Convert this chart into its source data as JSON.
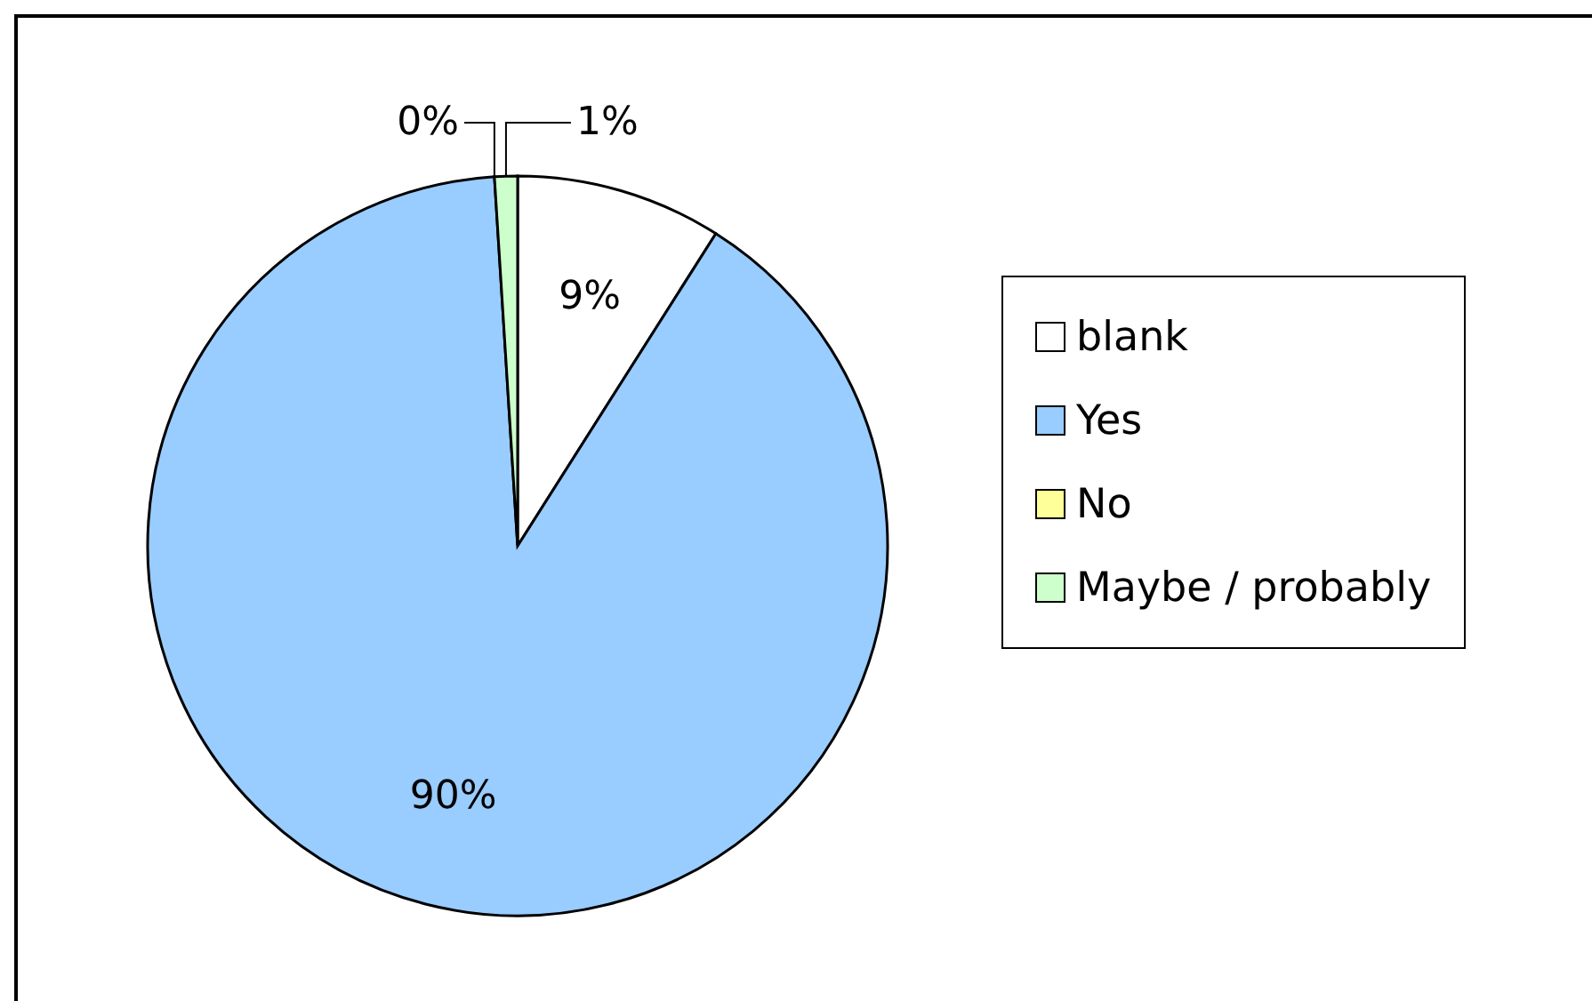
{
  "chart_data": {
    "type": "pie",
    "categories": [
      "blank",
      "Yes",
      "No",
      "Maybe / probably"
    ],
    "values": [
      9,
      90,
      0,
      1
    ],
    "colors": [
      "#ffffff",
      "#99ccff",
      "#ffff99",
      "#ccffcc"
    ],
    "value_labels": [
      "9%",
      "90%",
      "0%",
      "1%"
    ],
    "legend": "right"
  }
}
